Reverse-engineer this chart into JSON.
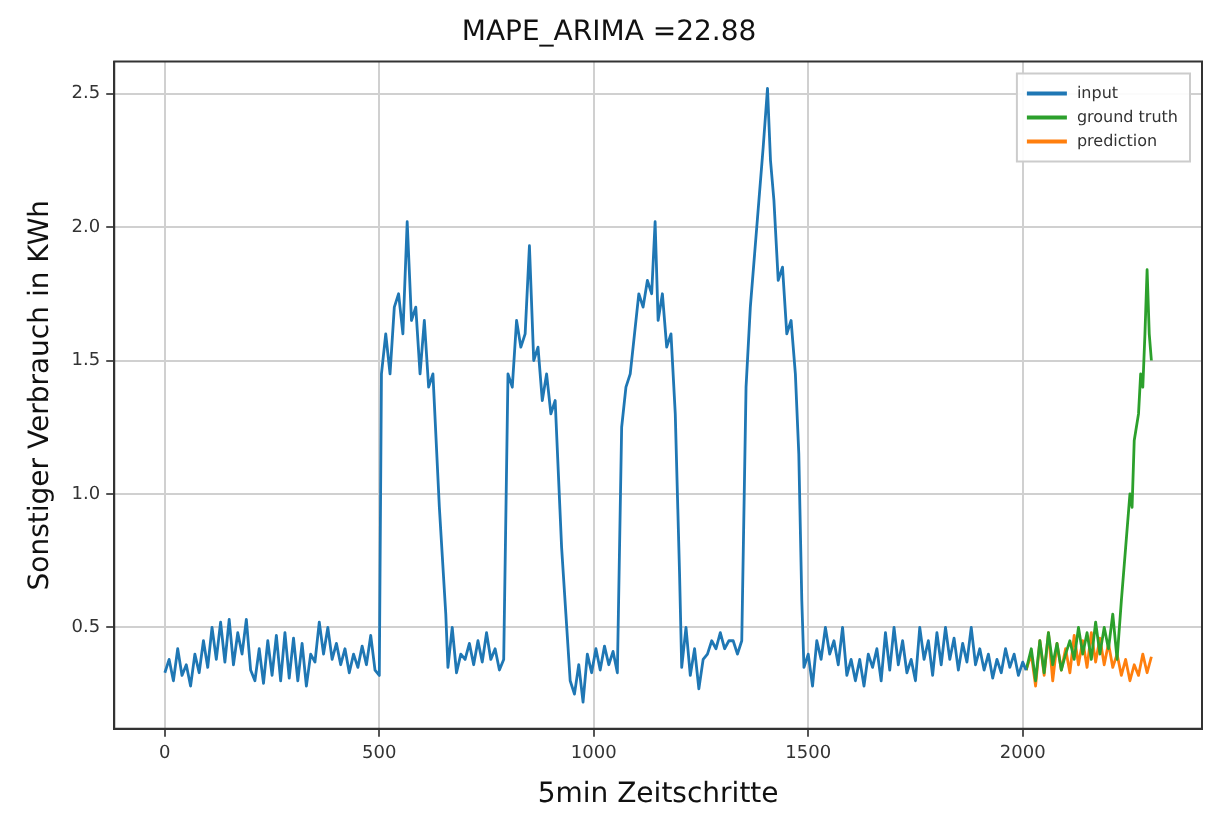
{
  "chart_data": {
    "type": "line",
    "title": "MAPE_ARIMA =22.88",
    "xlabel": "5min Zeitschritte",
    "ylabel": "Sonstiger Verbrauch in KWh",
    "xlim": [
      -118,
      2418
    ],
    "ylim": [
      0.12,
      2.62
    ],
    "xticks": [
      0,
      500,
      1000,
      1500,
      2000
    ],
    "yticks": [
      {
        "value": 0.5,
        "label": "0.5"
      },
      {
        "value": 1.0,
        "label": "1.0"
      },
      {
        "value": 1.5,
        "label": "1.5"
      },
      {
        "value": 2.0,
        "label": "2.0"
      },
      {
        "value": 2.5,
        "label": "2.5"
      }
    ],
    "grid": true,
    "legend": "top right",
    "line_style": "solid",
    "marker": "none",
    "series": [
      {
        "name": "input",
        "color": "#1f77b4",
        "x": [
          0,
          10,
          20,
          30,
          40,
          50,
          60,
          70,
          80,
          90,
          100,
          110,
          120,
          130,
          140,
          150,
          160,
          170,
          180,
          190,
          200,
          210,
          220,
          230,
          240,
          250,
          260,
          270,
          280,
          290,
          300,
          310,
          320,
          330,
          340,
          350,
          360,
          370,
          380,
          390,
          400,
          410,
          420,
          430,
          440,
          450,
          460,
          470,
          480,
          490,
          500,
          505,
          515,
          525,
          535,
          545,
          555,
          565,
          575,
          585,
          595,
          605,
          615,
          625,
          640,
          655,
          660,
          670,
          680,
          690,
          700,
          710,
          720,
          730,
          740,
          750,
          760,
          770,
          780,
          790,
          800,
          810,
          820,
          830,
          840,
          850,
          860,
          870,
          880,
          890,
          900,
          910,
          925,
          935,
          945,
          955,
          965,
          975,
          985,
          995,
          1005,
          1015,
          1025,
          1035,
          1045,
          1055,
          1065,
          1075,
          1085,
          1095,
          1105,
          1115,
          1125,
          1135,
          1143,
          1150,
          1160,
          1170,
          1180,
          1190,
          1200,
          1205,
          1215,
          1225,
          1235,
          1245,
          1255,
          1265,
          1275,
          1285,
          1295,
          1305,
          1315,
          1325,
          1335,
          1345,
          1355,
          1365,
          1375,
          1385,
          1395,
          1405,
          1412,
          1420,
          1430,
          1440,
          1450,
          1460,
          1470,
          1478,
          1485,
          1490,
          1500,
          1510,
          1520,
          1530,
          1540,
          1550,
          1560,
          1570,
          1580,
          1590,
          1600,
          1610,
          1620,
          1630,
          1640,
          1650,
          1660,
          1670,
          1680,
          1690,
          1700,
          1710,
          1720,
          1730,
          1740,
          1750,
          1760,
          1770,
          1780,
          1790,
          1800,
          1810,
          1820,
          1830,
          1840,
          1850,
          1860,
          1870,
          1880,
          1890,
          1900,
          1910,
          1920,
          1930,
          1940,
          1950,
          1960,
          1970,
          1980,
          1990,
          2000,
          2008
        ],
        "values": [
          0.33,
          0.38,
          0.3,
          0.42,
          0.32,
          0.36,
          0.28,
          0.4,
          0.33,
          0.45,
          0.35,
          0.5,
          0.38,
          0.52,
          0.37,
          0.53,
          0.36,
          0.48,
          0.4,
          0.53,
          0.34,
          0.3,
          0.42,
          0.29,
          0.45,
          0.32,
          0.47,
          0.3,
          0.48,
          0.31,
          0.46,
          0.3,
          0.44,
          0.28,
          0.4,
          0.37,
          0.52,
          0.4,
          0.5,
          0.38,
          0.44,
          0.36,
          0.42,
          0.33,
          0.4,
          0.35,
          0.43,
          0.36,
          0.47,
          0.34,
          0.32,
          1.45,
          1.6,
          1.45,
          1.7,
          1.75,
          1.6,
          2.02,
          1.65,
          1.7,
          1.45,
          1.65,
          1.4,
          1.45,
          0.95,
          0.55,
          0.35,
          0.5,
          0.33,
          0.4,
          0.38,
          0.44,
          0.36,
          0.45,
          0.37,
          0.48,
          0.38,
          0.42,
          0.34,
          0.38,
          1.45,
          1.4,
          1.65,
          1.55,
          1.6,
          1.93,
          1.5,
          1.55,
          1.35,
          1.45,
          1.3,
          1.35,
          0.8,
          0.55,
          0.3,
          0.25,
          0.36,
          0.22,
          0.4,
          0.33,
          0.42,
          0.34,
          0.43,
          0.36,
          0.41,
          0.33,
          1.25,
          1.4,
          1.45,
          1.6,
          1.75,
          1.7,
          1.8,
          1.75,
          2.02,
          1.65,
          1.75,
          1.55,
          1.6,
          1.3,
          0.7,
          0.35,
          0.5,
          0.32,
          0.42,
          0.27,
          0.38,
          0.4,
          0.45,
          0.42,
          0.48,
          0.42,
          0.45,
          0.45,
          0.4,
          0.45,
          1.4,
          1.7,
          1.9,
          2.1,
          2.3,
          2.52,
          2.25,
          2.1,
          1.8,
          1.85,
          1.6,
          1.65,
          1.45,
          1.15,
          0.6,
          0.35,
          0.4,
          0.28,
          0.45,
          0.38,
          0.5,
          0.4,
          0.45,
          0.36,
          0.5,
          0.32,
          0.38,
          0.3,
          0.38,
          0.28,
          0.4,
          0.35,
          0.42,
          0.3,
          0.48,
          0.34,
          0.5,
          0.36,
          0.45,
          0.33,
          0.38,
          0.3,
          0.5,
          0.38,
          0.45,
          0.32,
          0.48,
          0.36,
          0.5,
          0.38,
          0.46,
          0.34,
          0.44,
          0.37,
          0.5,
          0.36,
          0.42,
          0.34,
          0.4,
          0.31,
          0.38,
          0.33,
          0.42,
          0.35,
          0.4,
          0.32,
          0.37,
          0.34
        ]
      },
      {
        "name": "ground truth",
        "color": "#2ca02c",
        "x": [
          2008,
          2020,
          2030,
          2040,
          2050,
          2060,
          2070,
          2080,
          2090,
          2100,
          2110,
          2120,
          2130,
          2140,
          2150,
          2160,
          2170,
          2180,
          2190,
          2200,
          2210,
          2220,
          2230,
          2240,
          2250,
          2255,
          2260,
          2270,
          2275,
          2280,
          2285,
          2290,
          2295,
          2300
        ],
        "values": [
          0.34,
          0.42,
          0.3,
          0.45,
          0.33,
          0.48,
          0.36,
          0.44,
          0.34,
          0.4,
          0.45,
          0.38,
          0.5,
          0.4,
          0.48,
          0.38,
          0.52,
          0.4,
          0.5,
          0.42,
          0.55,
          0.38,
          0.6,
          0.8,
          1.0,
          0.95,
          1.2,
          1.3,
          1.45,
          1.4,
          1.6,
          1.84,
          1.6,
          1.5
        ]
      },
      {
        "name": "prediction",
        "color": "#ff7f0e",
        "x": [
          2008,
          2020,
          2030,
          2040,
          2050,
          2060,
          2070,
          2080,
          2090,
          2100,
          2110,
          2120,
          2130,
          2140,
          2150,
          2160,
          2170,
          2180,
          2190,
          2200,
          2210,
          2220,
          2230,
          2240,
          2250,
          2260,
          2270,
          2280,
          2290,
          2300
        ],
        "values": [
          0.34,
          0.4,
          0.28,
          0.45,
          0.32,
          0.48,
          0.3,
          0.44,
          0.34,
          0.42,
          0.33,
          0.47,
          0.36,
          0.45,
          0.35,
          0.48,
          0.37,
          0.46,
          0.36,
          0.44,
          0.35,
          0.4,
          0.32,
          0.38,
          0.3,
          0.36,
          0.32,
          0.4,
          0.33,
          0.39
        ]
      }
    ]
  }
}
